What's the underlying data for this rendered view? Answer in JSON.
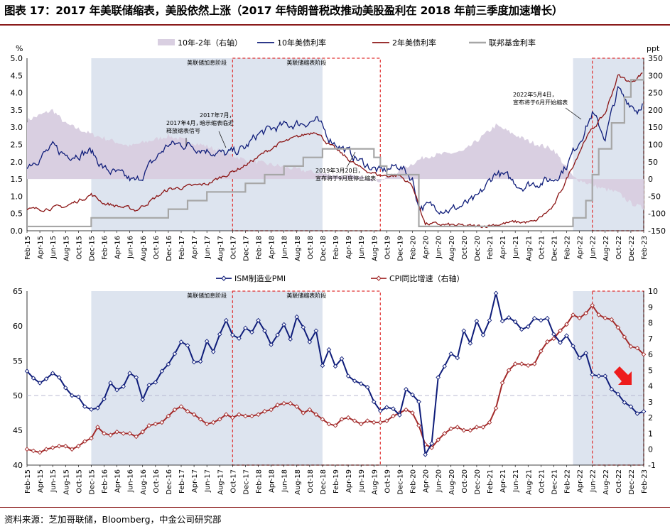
{
  "title": "图表 17：2017 年美联储缩表，美股依然上涨（2017 年特朗普税改推动美股盈利在 2018 年前三季度加速增长）",
  "source": "资料来源：芝加哥联储，Bloomberg，中金公司研究部",
  "colors": {
    "spread": "#d9cfe1",
    "ten_year": "#0f1d7a",
    "two_year": "#8b1414",
    "fed_funds": "#a6a6a6",
    "pmi": "#0f1d7a",
    "cpi": "#a32b2b",
    "shade_hike": "#dde4ef",
    "qt_box": "#e03030",
    "arrow": "#ee1c1c",
    "rule": "#8a1b1b"
  },
  "x_tick_labels": [
    "Feb-15",
    "Apr-15",
    "Jun-15",
    "Aug-15",
    "Oct-15",
    "Dec-15",
    "Feb-16",
    "Apr-16",
    "Jun-16",
    "Aug-16",
    "Oct-16",
    "Dec-16",
    "Feb-17",
    "Apr-17",
    "Jun-17",
    "Aug-17",
    "Oct-17",
    "Dec-17",
    "Feb-18",
    "Apr-18",
    "Jun-18",
    "Aug-18",
    "Oct-18",
    "Dec-18",
    "Feb-19",
    "Apr-19",
    "Jun-19",
    "Aug-19",
    "Oct-19",
    "Dec-19",
    "Feb-20",
    "Apr-20",
    "Jun-20",
    "Aug-20",
    "Oct-20",
    "Dec-20",
    "Feb-21",
    "Apr-21",
    "Jun-21",
    "Aug-21",
    "Oct-21",
    "Dec-21",
    "Feb-22",
    "Apr-22",
    "Jun-22",
    "Aug-22",
    "Oct-22",
    "Dec-22",
    "Feb-23"
  ],
  "chart_data": [
    {
      "type": "line",
      "title": "",
      "y_left_unit": "%",
      "y_right_unit": "ppt",
      "ylim_left": [
        0.0,
        5.0
      ],
      "ylim_right": [
        -150,
        350
      ],
      "yticks_left": [
        "0.0",
        "0.5",
        "1.0",
        "1.5",
        "2.0",
        "2.5",
        "3.0",
        "3.5",
        "4.0",
        "4.5",
        "5.0"
      ],
      "yticks_right": [
        "-150",
        "-100",
        "-50",
        "0",
        "50",
        "100",
        "150",
        "200",
        "250",
        "300",
        "350"
      ],
      "legend_position": "top",
      "grid": false,
      "regions": [
        {
          "label": "美联储加息阶段",
          "from": "Dec-15",
          "to": "Dec-18",
          "style": "shaded"
        },
        {
          "label": "美联储缩表阶段",
          "from": "Oct-17",
          "to": "Sep-19",
          "style": "dashed-box"
        },
        {
          "label": "",
          "from": "Mar-22",
          "to": "Feb-23",
          "style": "shaded"
        },
        {
          "label": "",
          "from": "Jun-22",
          "to": "Feb-23",
          "style": "dashed-box"
        }
      ],
      "annotations": [
        {
          "text": "2017年4月，释放缩表信号",
          "at": "Apr-17"
        },
        {
          "text": "2017年7月，暗示缩表临近",
          "at": "Jul-17"
        },
        {
          "text": "2019年3月20日，宣布将于9月底停止缩表",
          "at": "Mar-19"
        },
        {
          "text": "2022年5月4日，宣布将于6月开始缩表",
          "at": "May-22"
        }
      ],
      "series": [
        {
          "name": "10年-2年（右轴）",
          "axis": "right",
          "style": "area",
          "x": [
            "Feb-15",
            "Jun-15",
            "Aug-15",
            "Dec-15",
            "Jun-16",
            "Dec-16",
            "Jun-17",
            "Dec-17",
            "Jun-18",
            "Dec-18",
            "Jun-19",
            "Sep-19",
            "Dec-19",
            "Apr-20",
            "Oct-20",
            "Mar-21",
            "Aug-21",
            "Dec-21",
            "Mar-22",
            "Jul-22",
            "Oct-22",
            "Dec-22",
            "Feb-23"
          ],
          "values": [
            170,
            200,
            160,
            130,
            95,
            125,
            95,
            55,
            35,
            15,
            5,
            -5,
            25,
            65,
            80,
            155,
            110,
            85,
            5,
            -25,
            -40,
            -70,
            -85
          ]
        },
        {
          "name": "10年美债利率",
          "axis": "left",
          "style": "line",
          "x": [
            "Feb-15",
            "Jun-15",
            "Aug-15",
            "Dec-15",
            "Feb-16",
            "Jul-16",
            "Nov-16",
            "Dec-16",
            "Mar-17",
            "Sep-17",
            "Dec-17",
            "Feb-18",
            "May-18",
            "Nov-18",
            "Jan-19",
            "Jun-19",
            "Sep-19",
            "Dec-19",
            "Feb-20",
            "Mar-20",
            "Jun-20",
            "Aug-20",
            "Dec-20",
            "Mar-21",
            "Jul-21",
            "Dec-21",
            "Feb-22",
            "May-22",
            "Jun-22",
            "Aug-22",
            "Oct-22",
            "Nov-22",
            "Dec-22",
            "Jan-23",
            "Feb-23"
          ],
          "values": [
            1.9,
            2.4,
            2.2,
            2.3,
            1.8,
            1.4,
            2.3,
            2.5,
            2.5,
            2.2,
            2.4,
            2.8,
            3.0,
            3.2,
            2.7,
            2.0,
            1.7,
            1.9,
            1.5,
            0.7,
            0.7,
            0.6,
            0.9,
            1.7,
            1.3,
            1.5,
            1.9,
            3.0,
            3.4,
            2.7,
            4.1,
            3.8,
            3.7,
            3.5,
            3.8
          ]
        },
        {
          "name": "2年美债利率",
          "axis": "left",
          "style": "line",
          "x": [
            "Feb-15",
            "Aug-15",
            "Dec-15",
            "Feb-16",
            "Jul-16",
            "Dec-16",
            "Jun-17",
            "Dec-17",
            "May-18",
            "Nov-18",
            "Jan-19",
            "Jun-19",
            "Sep-19",
            "Dec-19",
            "Feb-20",
            "Apr-20",
            "Dec-20",
            "Jun-21",
            "Sep-21",
            "Dec-21",
            "Feb-22",
            "May-22",
            "Aug-22",
            "Oct-22",
            "Nov-22",
            "Dec-22",
            "Feb-23"
          ],
          "values": [
            0.6,
            0.7,
            1.05,
            0.8,
            0.6,
            1.2,
            1.35,
            1.9,
            2.5,
            2.9,
            2.5,
            1.8,
            1.6,
            1.6,
            1.3,
            0.2,
            0.12,
            0.25,
            0.25,
            0.7,
            1.5,
            2.7,
            3.4,
            4.5,
            4.4,
            4.3,
            4.6
          ]
        },
        {
          "name": "联邦基金利率",
          "axis": "left",
          "style": "step",
          "x": [
            "Feb-15",
            "Dec-15",
            "Dec-16",
            "Mar-17",
            "Jun-17",
            "Dec-17",
            "Mar-18",
            "Jun-18",
            "Sep-18",
            "Dec-18",
            "Aug-19",
            "Sep-19",
            "Oct-19",
            "Mar-20",
            "Mar-22",
            "May-22",
            "Jun-22",
            "Jul-22",
            "Sep-22",
            "Nov-22",
            "Dec-22",
            "Feb-23"
          ],
          "values": [
            0.125,
            0.375,
            0.625,
            0.875,
            1.125,
            1.375,
            1.625,
            1.875,
            2.125,
            2.375,
            2.125,
            1.875,
            1.625,
            0.125,
            0.375,
            0.875,
            1.625,
            2.375,
            3.125,
            3.875,
            4.375,
            4.625
          ]
        }
      ]
    },
    {
      "type": "line",
      "title": "",
      "ylim_left": [
        40,
        65
      ],
      "ylim_right": [
        -1,
        10
      ],
      "yticks_left": [
        "40",
        "45",
        "50",
        "55",
        "60",
        "65"
      ],
      "yticks_right": [
        "-1",
        "0",
        "1",
        "2",
        "3",
        "4",
        "5",
        "6",
        "7",
        "8",
        "9",
        "10"
      ],
      "legend_position": "top",
      "grid": false,
      "reference_line": {
        "axis": "left",
        "value": 50
      },
      "regions": [
        {
          "label": "美联储加息阶段",
          "from": "Dec-15",
          "to": "Dec-18",
          "style": "shaded"
        },
        {
          "label": "美联储缩表阶段",
          "from": "Oct-17",
          "to": "Sep-19",
          "style": "dashed-box"
        },
        {
          "label": "",
          "from": "Mar-22",
          "to": "Feb-23",
          "style": "shaded"
        },
        {
          "label": "",
          "from": "Jun-22",
          "to": "Feb-23",
          "style": "dashed-box"
        }
      ],
      "series": [
        {
          "name": "ISM制造业PMI",
          "axis": "left",
          "marker": "diamond",
          "x": [
            "Feb-15",
            "Mar-15",
            "Apr-15",
            "May-15",
            "Jun-15",
            "Jul-15",
            "Aug-15",
            "Sep-15",
            "Oct-15",
            "Nov-15",
            "Dec-15",
            "Jan-16",
            "Feb-16",
            "Mar-16",
            "Apr-16",
            "May-16",
            "Jun-16",
            "Jul-16",
            "Aug-16",
            "Sep-16",
            "Oct-16",
            "Nov-16",
            "Dec-16",
            "Jan-17",
            "Feb-17",
            "Mar-17",
            "Apr-17",
            "May-17",
            "Jun-17",
            "Jul-17",
            "Aug-17",
            "Sep-17",
            "Oct-17",
            "Nov-17",
            "Dec-17",
            "Jan-18",
            "Feb-18",
            "Mar-18",
            "Apr-18",
            "May-18",
            "Jun-18",
            "Jul-18",
            "Aug-18",
            "Sep-18",
            "Oct-18",
            "Nov-18",
            "Dec-18",
            "Jan-19",
            "Feb-19",
            "Mar-19",
            "Apr-19",
            "May-19",
            "Jun-19",
            "Jul-19",
            "Aug-19",
            "Sep-19",
            "Oct-19",
            "Nov-19",
            "Dec-19",
            "Jan-20",
            "Feb-20",
            "Mar-20",
            "Apr-20",
            "May-20",
            "Jun-20",
            "Jul-20",
            "Aug-20",
            "Sep-20",
            "Oct-20",
            "Nov-20",
            "Dec-20",
            "Jan-21",
            "Feb-21",
            "Mar-21",
            "Apr-21",
            "May-21",
            "Jun-21",
            "Jul-21",
            "Aug-21",
            "Sep-21",
            "Oct-21",
            "Nov-21",
            "Dec-21",
            "Jan-22",
            "Feb-22",
            "Mar-22",
            "Apr-22",
            "May-22",
            "Jun-22",
            "Jul-22",
            "Aug-22",
            "Sep-22",
            "Oct-22",
            "Nov-22",
            "Dec-22",
            "Jan-23",
            "Feb-23"
          ],
          "values": [
            53.5,
            52.5,
            51.8,
            52.4,
            53.2,
            52.6,
            51.1,
            50.0,
            49.8,
            48.4,
            48.0,
            48.2,
            49.5,
            51.8,
            50.8,
            51.3,
            53.2,
            52.6,
            49.4,
            51.5,
            51.9,
            53.5,
            54.5,
            56.0,
            57.7,
            57.2,
            54.8,
            54.9,
            57.8,
            56.3,
            58.8,
            60.8,
            58.7,
            58.2,
            59.7,
            59.1,
            60.8,
            59.3,
            57.3,
            58.7,
            60.2,
            58.1,
            61.3,
            59.8,
            57.7,
            59.3,
            54.3,
            56.6,
            54.2,
            55.3,
            52.8,
            52.1,
            51.7,
            51.2,
            49.1,
            47.8,
            48.3,
            48.1,
            47.2,
            50.9,
            50.1,
            49.1,
            41.5,
            43.1,
            52.6,
            54.2,
            56.0,
            55.4,
            59.3,
            57.5,
            60.7,
            58.7,
            60.8,
            64.7,
            60.7,
            61.2,
            60.6,
            59.5,
            59.9,
            61.1,
            60.8,
            61.1,
            58.8,
            57.6,
            58.6,
            57.1,
            55.4,
            56.1,
            53.0,
            52.8,
            52.8,
            50.9,
            50.2,
            49.0,
            48.4,
            47.4,
            47.7
          ]
        },
        {
          "name": "CPI同比增速（右轴）",
          "axis": "right",
          "marker": "diamond",
          "x": [
            "Feb-15",
            "Mar-15",
            "Apr-15",
            "May-15",
            "Jun-15",
            "Jul-15",
            "Aug-15",
            "Sep-15",
            "Oct-15",
            "Nov-15",
            "Dec-15",
            "Jan-16",
            "Feb-16",
            "Mar-16",
            "Apr-16",
            "May-16",
            "Jun-16",
            "Jul-16",
            "Aug-16",
            "Sep-16",
            "Oct-16",
            "Nov-16",
            "Dec-16",
            "Jan-17",
            "Feb-17",
            "Mar-17",
            "Apr-17",
            "May-17",
            "Jun-17",
            "Jul-17",
            "Aug-17",
            "Sep-17",
            "Oct-17",
            "Nov-17",
            "Dec-17",
            "Jan-18",
            "Feb-18",
            "Mar-18",
            "Apr-18",
            "May-18",
            "Jun-18",
            "Jul-18",
            "Aug-18",
            "Sep-18",
            "Oct-18",
            "Nov-18",
            "Dec-18",
            "Jan-19",
            "Feb-19",
            "Mar-19",
            "Apr-19",
            "May-19",
            "Jun-19",
            "Jul-19",
            "Aug-19",
            "Sep-19",
            "Oct-19",
            "Nov-19",
            "Dec-19",
            "Jan-20",
            "Feb-20",
            "Mar-20",
            "Apr-20",
            "May-20",
            "Jun-20",
            "Jul-20",
            "Aug-20",
            "Sep-20",
            "Oct-20",
            "Nov-20",
            "Dec-20",
            "Jan-21",
            "Feb-21",
            "Mar-21",
            "Apr-21",
            "May-21",
            "Jun-21",
            "Jul-21",
            "Aug-21",
            "Sep-21",
            "Oct-21",
            "Nov-21",
            "Dec-21",
            "Jan-22",
            "Feb-22",
            "Mar-22",
            "Apr-22",
            "May-22",
            "Jun-22",
            "Jul-22",
            "Aug-22",
            "Sep-22",
            "Oct-22",
            "Nov-22",
            "Dec-22",
            "Jan-23",
            "Feb-23"
          ],
          "values": [
            0.0,
            -0.1,
            -0.2,
            0.0,
            0.1,
            0.2,
            0.2,
            0.0,
            0.2,
            0.5,
            0.7,
            1.4,
            1.0,
            0.9,
            1.1,
            1.0,
            1.0,
            0.8,
            1.1,
            1.5,
            1.6,
            1.7,
            2.1,
            2.5,
            2.7,
            2.4,
            2.2,
            1.9,
            1.6,
            1.7,
            1.9,
            2.2,
            2.0,
            2.2,
            2.1,
            2.1,
            2.2,
            2.4,
            2.5,
            2.8,
            2.9,
            2.9,
            2.7,
            2.3,
            2.5,
            2.2,
            1.9,
            1.6,
            1.5,
            1.9,
            2.0,
            1.8,
            1.6,
            1.8,
            1.7,
            1.7,
            1.8,
            2.1,
            2.3,
            2.5,
            2.3,
            1.5,
            0.3,
            0.1,
            0.6,
            1.0,
            1.3,
            1.4,
            1.2,
            1.2,
            1.4,
            1.4,
            1.7,
            2.6,
            4.2,
            5.0,
            5.4,
            5.4,
            5.3,
            5.4,
            6.2,
            6.8,
            7.0,
            7.5,
            7.9,
            8.5,
            8.3,
            8.6,
            9.1,
            8.5,
            8.3,
            8.2,
            7.7,
            7.1,
            6.5,
            6.4,
            6.0
          ]
        }
      ]
    }
  ]
}
